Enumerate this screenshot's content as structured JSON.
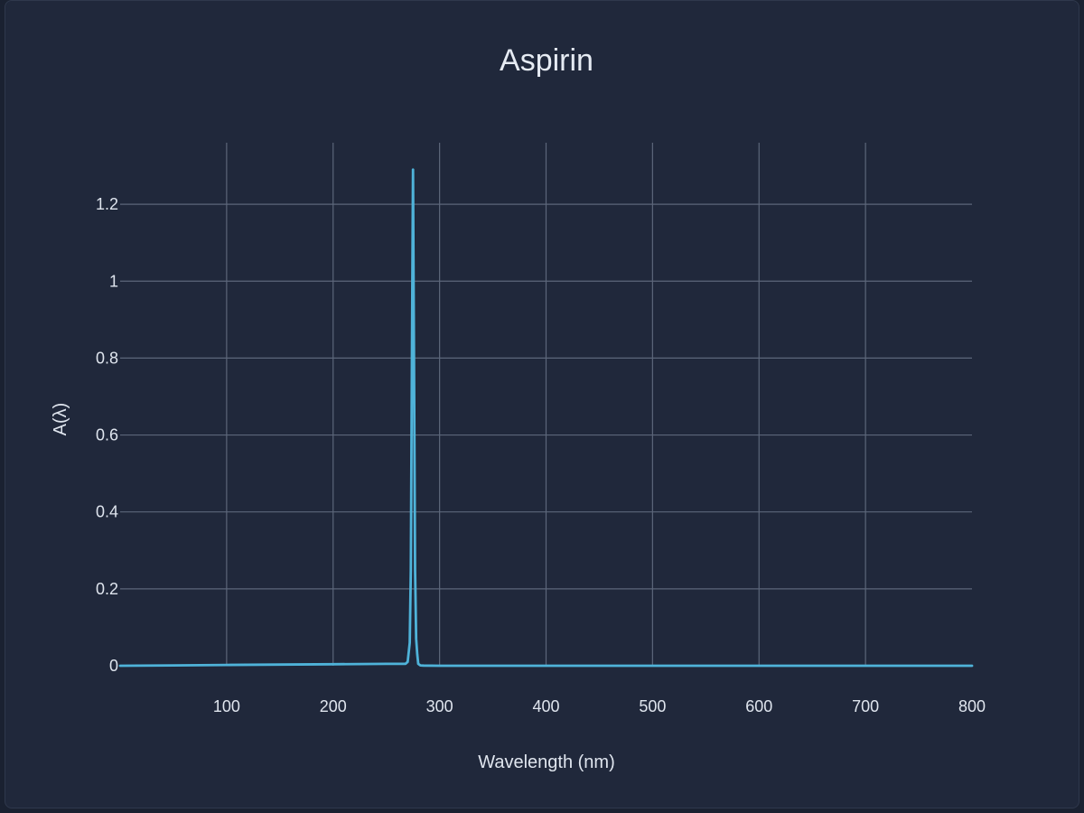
{
  "chart_data": {
    "type": "line",
    "title": "Aspirin",
    "xlabel": "Wavelength (nm)",
    "ylabel": "A(λ)",
    "xlim": [
      0,
      800
    ],
    "ylim": [
      -0.0,
      1.37
    ],
    "xticks": [
      100,
      200,
      300,
      400,
      500,
      600,
      700,
      800
    ],
    "yticks": [
      0,
      0.2,
      0.4,
      0.6,
      0.8,
      1,
      1.2
    ],
    "ytick_labels": [
      "0",
      "0.2",
      "0.4",
      "0.6",
      "0.8",
      "1",
      "1.2"
    ],
    "grid": true,
    "series": [
      {
        "color": "#4fb3d9",
        "x": [
          0,
          50,
          100,
          150,
          200,
          250,
          268,
          270,
          272,
          273,
          274,
          275,
          276,
          277,
          278,
          279,
          280,
          282,
          285,
          300,
          400,
          500,
          600,
          700,
          800
        ],
        "y": [
          0,
          0.001,
          0.002,
          0.003,
          0.004,
          0.005,
          0.005,
          0.01,
          0.06,
          0.25,
          0.8,
          1.29,
          0.8,
          0.25,
          0.07,
          0.03,
          0.005,
          0.001,
          0.0005,
          0,
          0,
          0,
          0,
          0,
          0
        ]
      }
    ]
  }
}
